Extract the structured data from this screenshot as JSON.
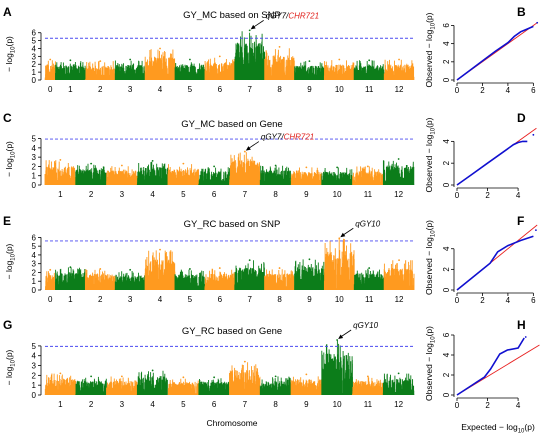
{
  "colors": {
    "odd_chromosome": "#ff9a1f",
    "even_chromosome": "#0c7d1a",
    "threshold": "#4a4af0",
    "qq_observed": "#1010d0",
    "qq_expected": "#e82020",
    "annotation_red": "#e0201b"
  },
  "xlabel": "Chromosome",
  "manhattan_ylabel": "− log10(p)",
  "qq_xlabel": "Expected −log10(p)",
  "qq_ylabel": "Observed −log10(p)",
  "chart_data": [
    {
      "panel": "A",
      "type": "scatter",
      "title": "GY_MC based on SNP",
      "xlabel": "",
      "ylabel": "− log10(p)",
      "x_ticks": [
        "0",
        "1",
        "2",
        "3",
        "4",
        "5",
        "6",
        "7",
        "8",
        "9",
        "10",
        "11",
        "12"
      ],
      "y_ticks": [
        0,
        1,
        2,
        3,
        4,
        5,
        6
      ],
      "ylim": [
        0,
        6.6
      ],
      "threshold": 5.3,
      "annotation": {
        "label_black": "qGY7/",
        "label_red": "CHR721",
        "chromosome": 7
      },
      "chromosome_peaks": [
        2.6,
        2.5,
        2.4,
        2.6,
        4.0,
        2.6,
        3.0,
        6.3,
        4.2,
        2.4,
        2.6,
        2.5,
        2.6
      ]
    },
    {
      "panel": "B",
      "type": "line",
      "title": "",
      "x_ticks": [
        0,
        2,
        4,
        6
      ],
      "y_ticks": [
        0,
        2,
        4,
        6
      ],
      "xlim": [
        0,
        6.6
      ],
      "ylim": [
        0,
        6.6
      ],
      "series": [
        {
          "x": [
            0,
            1,
            2,
            3,
            4,
            4.5,
            5,
            5.5,
            6
          ],
          "y": [
            0,
            1.05,
            2.1,
            3.15,
            4.1,
            4.8,
            5.3,
            5.6,
            5.9
          ]
        }
      ],
      "expected": [
        [
          0,
          0
        ],
        [
          6.3,
          6.3
        ]
      ],
      "outliers": [
        [
          6.3,
          6.3
        ]
      ]
    },
    {
      "panel": "C",
      "type": "scatter",
      "title": "GY_MC based on Gene",
      "xlabel": "",
      "ylabel": "− log10(p)",
      "x_ticks": [
        "1",
        "2",
        "3",
        "4",
        "5",
        "6",
        "7",
        "8",
        "9",
        "10",
        "11",
        "12"
      ],
      "y_ticks": [
        0,
        1,
        2,
        3,
        4,
        5
      ],
      "ylim": [
        0,
        5.6
      ],
      "threshold": 4.95,
      "annotation": {
        "label_black": "qGY7/",
        "label_red": "CHR721",
        "chromosome": 7
      },
      "chromosome_peaks": [
        2.7,
        2.3,
        2.1,
        2.6,
        2.3,
        2.0,
        3.6,
        2.1,
        1.9,
        1.9,
        2.0,
        2.8
      ]
    },
    {
      "panel": "D",
      "type": "line",
      "title": "",
      "x_ticks": [
        0,
        2,
        4
      ],
      "y_ticks": [
        0,
        2,
        4
      ],
      "xlim": [
        0,
        5.5
      ],
      "ylim": [
        0,
        5.5
      ],
      "series": [
        {
          "x": [
            0,
            1,
            2,
            3,
            3.7,
            4.0,
            4.3,
            4.6
          ],
          "y": [
            0,
            1.0,
            2.0,
            3.0,
            3.7,
            3.9,
            4.0,
            4.0
          ]
        }
      ],
      "expected": [
        [
          0,
          0
        ],
        [
          5.2,
          5.2
        ]
      ],
      "outliers": [
        [
          5.0,
          4.6
        ]
      ]
    },
    {
      "panel": "E",
      "type": "scatter",
      "title": "GY_RC based on SNP",
      "xlabel": "",
      "ylabel": "− log10(p)",
      "x_ticks": [
        "0",
        "1",
        "2",
        "3",
        "4",
        "5",
        "6",
        "7",
        "8",
        "9",
        "10",
        "11",
        "12"
      ],
      "y_ticks": [
        0,
        1,
        2,
        3,
        4,
        5,
        6
      ],
      "ylim": [
        0,
        6.5
      ],
      "threshold": 5.6,
      "annotation": {
        "label_black": "qGY10",
        "label_red": "",
        "chromosome": 10
      },
      "chromosome_peaks": [
        2.3,
        2.6,
        2.4,
        2.3,
        4.6,
        2.4,
        2.5,
        3.4,
        2.5,
        3.5,
        5.9,
        2.5,
        3.4
      ]
    },
    {
      "panel": "F",
      "type": "line",
      "title": "",
      "x_ticks": [
        0,
        2,
        4,
        6
      ],
      "y_ticks": [
        0,
        2,
        4
      ],
      "xlim": [
        0,
        6.6
      ],
      "ylim": [
        0,
        6.3
      ],
      "series": [
        {
          "x": [
            0,
            1,
            2,
            2.6,
            3.2,
            4,
            5,
            6
          ],
          "y": [
            0,
            1.0,
            2.0,
            2.6,
            3.7,
            4.3,
            4.8,
            5.2
          ]
        }
      ],
      "expected": [
        [
          0,
          0
        ],
        [
          6.3,
          6.3
        ]
      ],
      "outliers": [
        [
          6.2,
          5.8
        ]
      ]
    },
    {
      "panel": "G",
      "type": "scatter",
      "title": "GY_RC based on Gene",
      "xlabel": "Chromosome",
      "ylabel": "− log10(p)",
      "x_ticks": [
        "1",
        "2",
        "3",
        "4",
        "5",
        "6",
        "7",
        "8",
        "9",
        "10",
        "11",
        "12"
      ],
      "y_ticks": [
        0,
        1,
        2,
        3,
        4,
        5
      ],
      "ylim": [
        0,
        5.6
      ],
      "threshold": 4.95,
      "annotation": {
        "label_black": "qGY10",
        "label_red": "",
        "chromosome": 10
      },
      "chromosome_peaks": [
        2.2,
        1.9,
        1.9,
        2.5,
        1.8,
        1.8,
        3.4,
        1.9,
        2.1,
        5.6,
        1.9,
        2.2
      ]
    },
    {
      "panel": "H",
      "type": "line",
      "title": "",
      "x_ticks": [
        0,
        2,
        4
      ],
      "y_ticks": [
        0,
        2,
        4,
        6
      ],
      "xlim": [
        0,
        5.5
      ],
      "ylim": [
        0,
        6.3
      ],
      "series": [
        {
          "x": [
            0,
            1,
            1.8,
            2.2,
            2.8,
            3.3,
            4.0,
            4.4
          ],
          "y": [
            0,
            1.0,
            1.8,
            2.6,
            4.1,
            4.5,
            4.7,
            5.7
          ]
        }
      ],
      "expected": [
        [
          0,
          0
        ],
        [
          5.4,
          5.0
        ]
      ],
      "outliers": [
        [
          4.5,
          5.8
        ]
      ]
    }
  ]
}
